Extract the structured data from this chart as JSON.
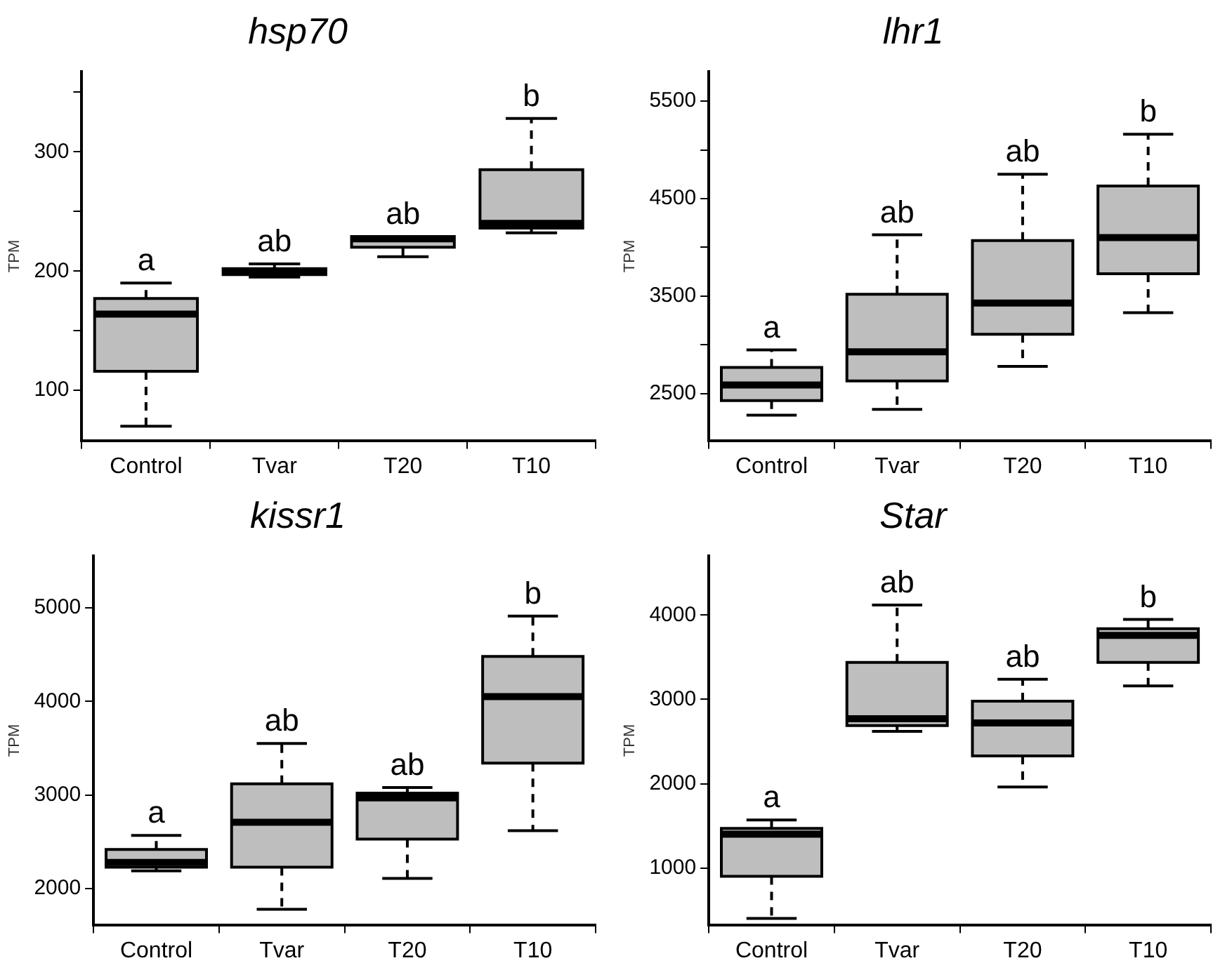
{
  "chart_data": [
    {
      "type": "box",
      "title": "hsp70",
      "ylabel": "TPM",
      "categories": [
        "Control",
        "Tvar",
        "T20",
        "T10"
      ],
      "color": "#bebebe",
      "ylim": [
        58,
        367
      ],
      "yticks": [
        100,
        {
          "value": 150,
          "label": null
        },
        200,
        {
          "value": 250,
          "label": null
        },
        300,
        {
          "value": 350,
          "label": null
        }
      ],
      "grid": false,
      "legend": false,
      "annotations": [
        "a",
        "ab",
        "ab",
        "b"
      ],
      "boxes": [
        {
          "low": 70,
          "q1": 116,
          "median": 164,
          "q3": 177,
          "high": 190
        },
        {
          "low": 195,
          "q1": 197,
          "median": 199,
          "q3": 202,
          "high": 206
        },
        {
          "low": 212,
          "q1": 220,
          "median": 227,
          "q3": 229,
          "high": 229
        },
        {
          "low": 232,
          "q1": 236,
          "median": 240,
          "q3": 285,
          "high": 328
        }
      ]
    },
    {
      "type": "box",
      "title": "lhr1",
      "ylabel": "TPM",
      "categories": [
        "Control",
        "Tvar",
        "T20",
        "T10"
      ],
      "color": "#bebebe",
      "ylim": [
        2020,
        5800
      ],
      "yticks": [
        2500,
        {
          "value": 3000,
          "label": null
        },
        3500,
        {
          "value": 4000,
          "label": null
        },
        4500,
        {
          "value": 5000,
          "label": null
        },
        5500
      ],
      "grid": false,
      "legend": false,
      "annotations": [
        "a",
        "ab",
        "ab",
        "b"
      ],
      "boxes": [
        {
          "low": 2280,
          "q1": 2430,
          "median": 2590,
          "q3": 2770,
          "high": 2950
        },
        {
          "low": 2340,
          "q1": 2630,
          "median": 2930,
          "q3": 3520,
          "high": 4130
        },
        {
          "low": 2780,
          "q1": 3110,
          "median": 3430,
          "q3": 4070,
          "high": 4750
        },
        {
          "low": 3330,
          "q1": 3730,
          "median": 4100,
          "q3": 4630,
          "high": 5160
        }
      ]
    },
    {
      "type": "box",
      "title": "kissr1",
      "ylabel": "TPM",
      "categories": [
        "Control",
        "Tvar",
        "T20",
        "T10"
      ],
      "color": "#bebebe",
      "ylim": [
        1615,
        5550
      ],
      "yticks": [
        2000,
        3000,
        4000,
        5000
      ],
      "grid": false,
      "legend": false,
      "annotations": [
        "a",
        "ab",
        "ab",
        "b"
      ],
      "boxes": [
        {
          "low": 2190,
          "q1": 2230,
          "median": 2280,
          "q3": 2420,
          "high": 2570
        },
        {
          "low": 1780,
          "q1": 2230,
          "median": 2710,
          "q3": 3120,
          "high": 3550
        },
        {
          "low": 2110,
          "q1": 2530,
          "median": 2970,
          "q3": 3020,
          "high": 3080
        },
        {
          "low": 2620,
          "q1": 3340,
          "median": 4050,
          "q3": 4480,
          "high": 4910
        }
      ]
    },
    {
      "type": "box",
      "title": "Star",
      "ylabel": "TPM",
      "categories": [
        "Control",
        "Tvar",
        "T20",
        "T10"
      ],
      "color": "#bebebe",
      "ylim": [
        325,
        4700
      ],
      "yticks": [
        1000,
        2000,
        3000,
        4000
      ],
      "grid": false,
      "legend": false,
      "annotations": [
        "a",
        "ab",
        "ab",
        "b"
      ],
      "boxes": [
        {
          "low": 400,
          "q1": 900,
          "median": 1400,
          "q3": 1470,
          "high": 1570
        },
        {
          "low": 2620,
          "q1": 2690,
          "median": 2770,
          "q3": 3440,
          "high": 4120
        },
        {
          "low": 1960,
          "q1": 2330,
          "median": 2720,
          "q3": 2980,
          "high": 3240
        },
        {
          "low": 3160,
          "q1": 3440,
          "median": 3760,
          "q3": 3840,
          "high": 3950
        }
      ]
    }
  ]
}
